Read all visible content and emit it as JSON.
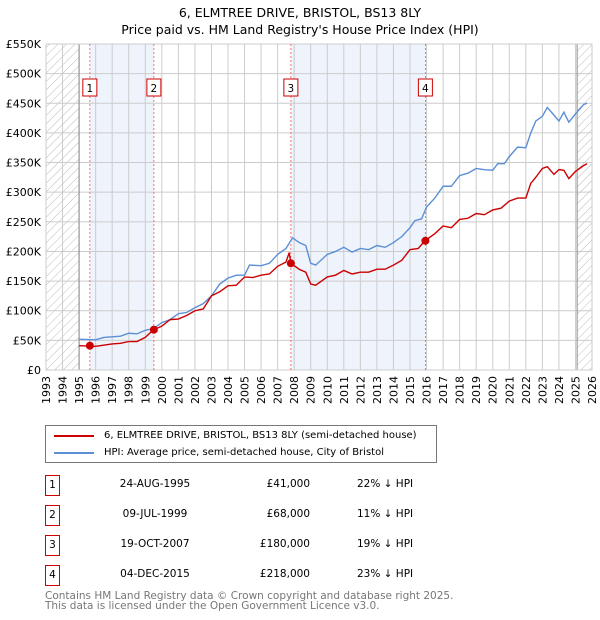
{
  "chart_data": {
    "type": "line",
    "title": "6, ELMTREE DRIVE, BRISTOL, BS13 8LY",
    "subtitle": "Price paid vs. HM Land Registry's House Price Index (HPI)",
    "xlim": [
      1993,
      2026
    ],
    "ylim": [
      0,
      550000
    ],
    "x_ticks": [
      "1993",
      "1994",
      "1995",
      "1996",
      "1997",
      "1998",
      "1999",
      "2000",
      "2001",
      "2002",
      "2003",
      "2004",
      "2005",
      "2006",
      "2007",
      "2008",
      "2009",
      "2010",
      "2011",
      "2012",
      "2013",
      "2014",
      "2015",
      "2016",
      "2017",
      "2018",
      "2019",
      "2020",
      "2021",
      "2022",
      "2023",
      "2024",
      "2025",
      "2026"
    ],
    "y_ticks": [
      {
        "v": 0,
        "label": "£0"
      },
      {
        "v": 50000,
        "label": "£50K"
      },
      {
        "v": 100000,
        "label": "£100K"
      },
      {
        "v": 150000,
        "label": "£150K"
      },
      {
        "v": 200000,
        "label": "£200K"
      },
      {
        "v": 250000,
        "label": "£250K"
      },
      {
        "v": 300000,
        "label": "£300K"
      },
      {
        "v": 350000,
        "label": "£350K"
      },
      {
        "v": 400000,
        "label": "£400K"
      },
      {
        "v": 450000,
        "label": "£450K"
      },
      {
        "v": 500000,
        "label": "£500K"
      },
      {
        "v": 550000,
        "label": "£550K"
      }
    ],
    "grid": true,
    "hatched_before": 1995,
    "hatched_after": 2025.1,
    "series": [
      {
        "name": "6, ELMTREE DRIVE, BRISTOL, BS13 8LY (semi-detached house)",
        "color": "#cc0000",
        "x": [
          1995,
          1996,
          1997,
          1997.5,
          1998,
          1998.5,
          1999,
          1999.5,
          2000,
          2000.5,
          2001,
          2001.5,
          2002,
          2002.5,
          2003,
          2003.5,
          2004,
          2004.5,
          2005,
          2005.5,
          2006,
          2006.5,
          2007,
          2007.5,
          2007.7,
          2007.8,
          2008.3,
          2008.7,
          2009,
          2009.3,
          2010,
          2010.5,
          2011,
          2011.5,
          2012,
          2012.5,
          2013,
          2013.5,
          2014,
          2014.5,
          2015,
          2015.5,
          2015.9,
          2016.5,
          2017,
          2017.5,
          2018,
          2018.5,
          2019,
          2019.5,
          2020,
          2020.5,
          2021,
          2021.5,
          2022,
          2022.3,
          2022.6,
          2023,
          2023.3,
          2023.7,
          2024,
          2024.3,
          2024.6,
          2025,
          2025.5,
          2025.7
        ],
        "y": [
          41000,
          40000,
          44000,
          45000,
          48000,
          48000,
          55000,
          68000,
          74000,
          85000,
          86000,
          92000,
          100000,
          103000,
          125000,
          132000,
          142000,
          143000,
          157000,
          156000,
          160000,
          162000,
          175000,
          182000,
          198000,
          180000,
          170000,
          165000,
          145000,
          143000,
          157000,
          160000,
          168000,
          162000,
          165000,
          165000,
          170000,
          170000,
          177000,
          185000,
          203000,
          205000,
          218000,
          230000,
          243000,
          240000,
          254000,
          256000,
          264000,
          262000,
          270000,
          273000,
          285000,
          290000,
          290000,
          315000,
          325000,
          340000,
          343000,
          330000,
          338000,
          337000,
          323000,
          335000,
          345000,
          348000
        ]
      },
      {
        "name": "HPI: Average price, semi-detached house, City of Bristol",
        "color": "#5b8fd6",
        "x": [
          1995,
          1996,
          1996.5,
          1997.5,
          1998,
          1998.5,
          1999,
          1999.5,
          2000,
          2000.5,
          2001,
          2001.5,
          2002,
          2002.5,
          2003,
          2003.5,
          2004,
          2004.5,
          2005,
          2005.3,
          2006,
          2006.5,
          2007,
          2007.5,
          2007.9,
          2008.3,
          2008.7,
          2009,
          2009.3,
          2010,
          2010.5,
          2011,
          2011.5,
          2012,
          2012.5,
          2013,
          2013.5,
          2014,
          2014.5,
          2015,
          2015.3,
          2015.7,
          2016,
          2016.5,
          2017,
          2017.5,
          2018,
          2018.5,
          2019,
          2019.5,
          2020,
          2020.3,
          2020.7,
          2021,
          2021.5,
          2022,
          2022.3,
          2022.6,
          2023,
          2023.3,
          2023.7,
          2024,
          2024.3,
          2024.6,
          2025,
          2025.5,
          2025.7
        ],
        "y": [
          52000,
          51000,
          55000,
          57000,
          62000,
          61000,
          67000,
          70000,
          80000,
          85000,
          95000,
          97000,
          105000,
          112000,
          125000,
          145000,
          155000,
          160000,
          160000,
          177000,
          176000,
          180000,
          195000,
          205000,
          223000,
          215000,
          210000,
          180000,
          177000,
          195000,
          200000,
          207000,
          199000,
          205000,
          203000,
          210000,
          207000,
          215000,
          225000,
          240000,
          252000,
          255000,
          275000,
          290000,
          310000,
          310000,
          328000,
          332000,
          340000,
          338000,
          337000,
          348000,
          348000,
          360000,
          376000,
          375000,
          400000,
          420000,
          428000,
          443000,
          430000,
          420000,
          435000,
          418000,
          432000,
          448000,
          450000
        ]
      }
    ],
    "sales": [
      {
        "n": "1",
        "x": 1995.65,
        "price": 41000,
        "date": "24-AUG-1995",
        "price_label": "£41,000",
        "hpi": "22% ↓ HPI"
      },
      {
        "n": "2",
        "x": 1999.52,
        "price": 68000,
        "date": "09-JUL-1999",
        "price_label": "£68,000",
        "hpi": "11% ↓ HPI"
      },
      {
        "n": "3",
        "x": 2007.8,
        "price": 180000,
        "date": "19-OCT-2007",
        "price_label": "£180,000",
        "hpi": "19% ↓ HPI"
      },
      {
        "n": "4",
        "x": 2015.93,
        "price": 218000,
        "date": "04-DEC-2015",
        "price_label": "£218,000",
        "hpi": "23% ↓ HPI"
      }
    ]
  },
  "footer": {
    "line1": "Contains HM Land Registry data © Crown copyright and database right 2025.",
    "line2": "This data is licensed under the Open Government Licence v3.0."
  }
}
